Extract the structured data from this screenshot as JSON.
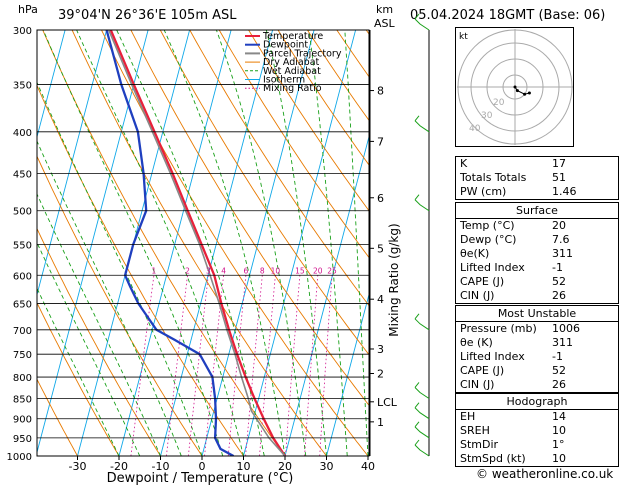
{
  "header": {
    "p_unit": "hPa",
    "location": "39°04'N 26°36'E 105m ASL",
    "km_unit": "km",
    "asl": "ASL",
    "datetime": "05.04.2024 18GMT (Base: 06)"
  },
  "chart_data": {
    "type": "line",
    "title": "",
    "xlabel": "Dewpoint / Temperature (°C)",
    "ylabel": "hPa",
    "mixing_ratio_label": "Mixing Ratio (g/kg)",
    "x_ticks": [
      -30,
      -20,
      -10,
      0,
      10,
      20,
      30,
      40
    ],
    "xlim": [
      -35,
      40
    ],
    "pressure_levels": [
      300,
      350,
      400,
      450,
      500,
      550,
      600,
      650,
      700,
      750,
      800,
      850,
      900,
      950,
      1000
    ],
    "ylim": [
      1000,
      300
    ],
    "height_ticks_km": [
      "8",
      "7",
      "6",
      "5",
      "4",
      "3",
      "2",
      "LCL",
      "1"
    ],
    "mixing_ratio_values": [
      "1",
      "2",
      "3",
      "4",
      "6",
      "8",
      "10",
      "15",
      "20",
      "25"
    ],
    "legend": [
      "Temperature",
      "Dewpoint",
      "Parcel Trajectory",
      "Dry Adiabat",
      "Wet Adiabat",
      "Isotherm",
      "Mixing Ratio"
    ],
    "series": [
      {
        "name": "Temperature",
        "color": "#e8203a",
        "points": [
          [
            1000,
            20
          ],
          [
            950,
            16
          ],
          [
            900,
            12.5
          ],
          [
            850,
            9
          ],
          [
            800,
            5.5
          ],
          [
            750,
            2
          ],
          [
            700,
            -1.5
          ],
          [
            650,
            -5
          ],
          [
            600,
            -8.5
          ],
          [
            550,
            -13.5
          ],
          [
            500,
            -19
          ],
          [
            450,
            -25
          ],
          [
            400,
            -32
          ],
          [
            350,
            -40
          ],
          [
            300,
            -49
          ]
        ]
      },
      {
        "name": "Dewpoint",
        "color": "#1f3fbf",
        "points": [
          [
            1000,
            7.6
          ],
          [
            980,
            4
          ],
          [
            950,
            2
          ],
          [
            900,
            1
          ],
          [
            850,
            -0.5
          ],
          [
            800,
            -2.5
          ],
          [
            750,
            -7
          ],
          [
            720,
            -14
          ],
          [
            700,
            -19
          ],
          [
            650,
            -25
          ],
          [
            620,
            -28
          ],
          [
            600,
            -30
          ],
          [
            550,
            -30
          ],
          [
            500,
            -29
          ],
          [
            450,
            -32
          ],
          [
            400,
            -36
          ],
          [
            350,
            -43
          ],
          [
            300,
            -50
          ]
        ]
      },
      {
        "name": "Parcel Trajectory",
        "color": "#888888",
        "points": [
          [
            1000,
            20
          ],
          [
            950,
            15
          ],
          [
            880,
            9
          ],
          [
            850,
            7.5
          ],
          [
            800,
            4.5
          ],
          [
            750,
            1.5
          ],
          [
            700,
            -2
          ],
          [
            650,
            -5.5
          ],
          [
            600,
            -9.5
          ],
          [
            550,
            -14
          ],
          [
            500,
            -19.5
          ],
          [
            450,
            -25.5
          ],
          [
            400,
            -32.5
          ],
          [
            350,
            -40.5
          ],
          [
            300,
            -49.5
          ]
        ]
      }
    ],
    "colors": {
      "temperature": "#e8203a",
      "dewpoint": "#1f3fbf",
      "parcel": "#888888",
      "dry": "#e87a00",
      "wet": "#19a019",
      "iso": "#10a8e8",
      "mixing": "#d0108c"
    },
    "hodograph": {
      "label": "kt",
      "ring_labels": [
        "40",
        "30",
        "20"
      ],
      "wind_trace": [
        [
          0,
          0
        ],
        [
          2,
          -3
        ],
        [
          8,
          -6
        ],
        [
          12,
          -5
        ]
      ]
    },
    "wind_barbs_hpa": [
      300,
      400,
      500,
      700,
      850,
      900,
      950,
      1000
    ]
  },
  "stats": {
    "indices": [
      {
        "k": "K",
        "v": "17"
      },
      {
        "k": "Totals Totals",
        "v": "51"
      },
      {
        "k": "PW (cm)",
        "v": "1.46"
      }
    ],
    "surface_title": "Surface",
    "surface": [
      {
        "k": "Temp (°C)",
        "v": "20"
      },
      {
        "k": "Dewp (°C)",
        "v": "7.6"
      },
      {
        "k": "θe(K)",
        "v": "311"
      },
      {
        "k": "Lifted Index",
        "v": "-1"
      },
      {
        "k": "CAPE (J)",
        "v": "52"
      },
      {
        "k": "CIN (J)",
        "v": "26"
      }
    ],
    "mu_title": "Most Unstable",
    "most_unstable": [
      {
        "k": "Pressure (mb)",
        "v": "1006"
      },
      {
        "k": "θe (K)",
        "v": "311"
      },
      {
        "k": "Lifted Index",
        "v": "-1"
      },
      {
        "k": "CAPE (J)",
        "v": "52"
      },
      {
        "k": "CIN (J)",
        "v": "26"
      }
    ],
    "hodo_title": "Hodograph",
    "hodograph": [
      {
        "k": "EH",
        "v": "14"
      },
      {
        "k": "SREH",
        "v": "10"
      },
      {
        "k": "StmDir",
        "v": "1°"
      },
      {
        "k": "StmSpd (kt)",
        "v": "10"
      }
    ]
  },
  "credit": "© weatheronline.co.uk"
}
